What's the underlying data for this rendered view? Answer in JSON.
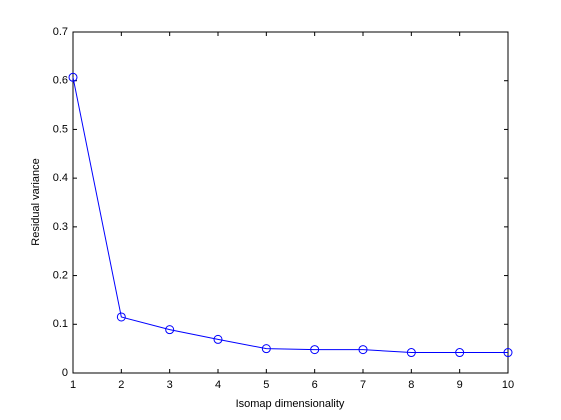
{
  "chart_data": {
    "type": "line",
    "x_label": "Isomap dimensionality",
    "y_label": "Residual variance",
    "x": [
      1,
      2,
      3,
      4,
      5,
      6,
      7,
      8,
      9,
      10
    ],
    "series": [
      {
        "name": "Residual variance",
        "color": "#0000ff",
        "values": [
          0.607,
          0.115,
          0.089,
          0.069,
          0.05,
          0.048,
          0.048,
          0.042,
          0.042,
          0.042
        ]
      }
    ],
    "xlim": [
      1,
      10
    ],
    "xticks": [
      1,
      2,
      3,
      4,
      5,
      6,
      7,
      8,
      9,
      10
    ],
    "ylim": [
      0,
      0.7
    ],
    "yticks": [
      0,
      0.1,
      0.2,
      0.3,
      0.4,
      0.5,
      0.6,
      0.7
    ],
    "grid": false,
    "marker": "circle"
  }
}
